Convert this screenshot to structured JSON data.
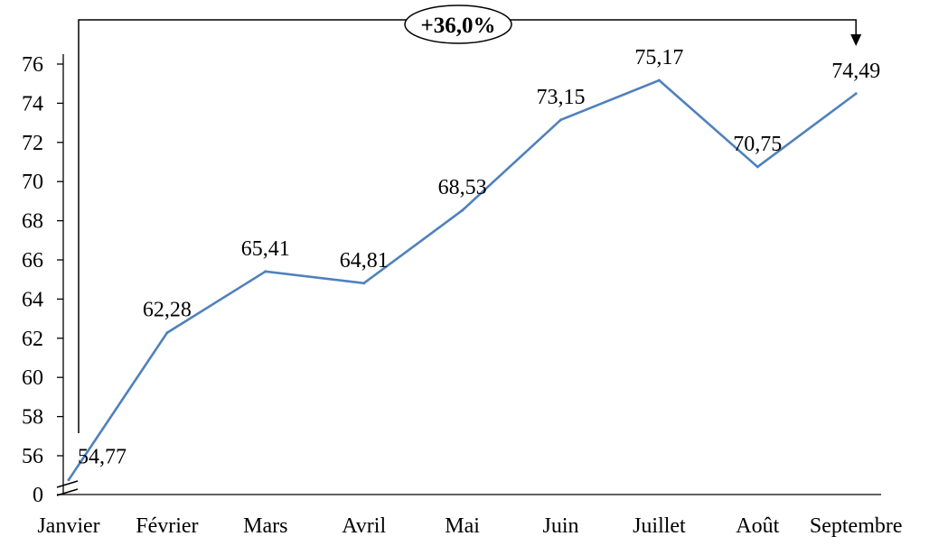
{
  "chart_data": {
    "type": "line",
    "title": "",
    "xlabel": "",
    "ylabel": "",
    "categories": [
      "Janvier",
      "Février",
      "Mars",
      "Avril",
      "Mai",
      "Juin",
      "Juillet",
      "Août",
      "Septembre"
    ],
    "series": [
      {
        "values": [
          54.77,
          62.28,
          65.41,
          64.81,
          68.53,
          73.15,
          75.17,
          70.75,
          74.49
        ],
        "labels": [
          "54,77",
          "62,28",
          "65,41",
          "64,81",
          "68,53",
          "73,15",
          "75,17",
          "70,75",
          "74,49"
        ],
        "color": "#4f81bd"
      }
    ],
    "yticks": [
      "0",
      "56",
      "58",
      "60",
      "62",
      "64",
      "66",
      "68",
      "70",
      "72",
      "74",
      "76"
    ],
    "ylim": [
      54,
      77
    ],
    "axis_break": true,
    "grid": false,
    "annotation": {
      "text": "+36,0%",
      "from": "Janvier",
      "to": "Septembre"
    }
  }
}
